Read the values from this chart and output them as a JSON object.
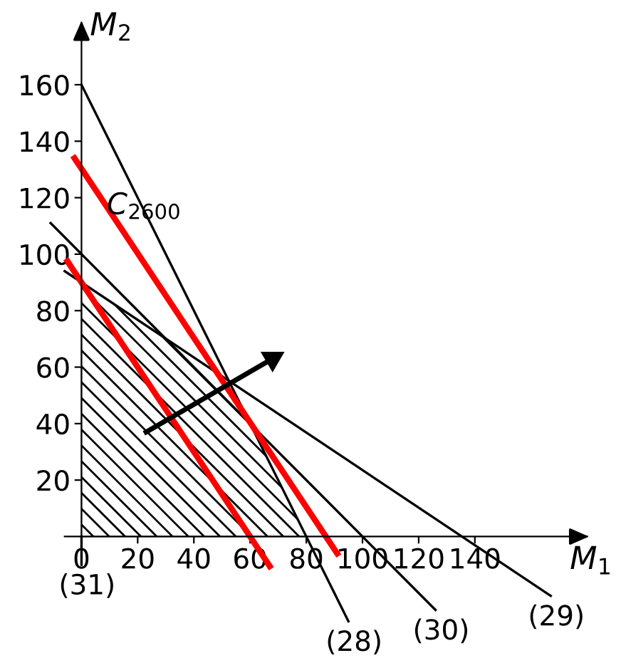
{
  "chart_data": {
    "type": "line",
    "xlabel": "M$_{1}$",
    "ylabel": "M$_{2}$",
    "xlim": [
      -29,
      192
    ],
    "ylim": [
      -43,
      190
    ],
    "xticks": [
      0,
      20,
      40,
      60,
      80,
      100,
      120,
      140
    ],
    "yticks": [
      20,
      40,
      60,
      80,
      100,
      120,
      140,
      160
    ],
    "legend": false,
    "marker": "none",
    "line_style": "solid",
    "series": [
      {
        "type": "area",
        "color": "#000000",
        "x": [
          0,
          0,
          30,
          60,
          80
        ],
        "values": [
          0,
          90,
          70,
          40,
          0
        ]
      },
      {
        "name": "(28)",
        "color": "#000000",
        "x": [
          0,
          95
        ],
        "values": [
          160,
          -30
        ]
      },
      {
        "name": "(30)",
        "color": "#000000",
        "x": [
          -11,
          126
        ],
        "values": [
          111,
          -26
        ]
      },
      {
        "name": "(29)",
        "color": "#000000",
        "x": [
          -6,
          167
        ],
        "values": [
          94,
          -21
        ]
      },
      {
        "name": "(31)",
        "color": "#000000",
        "x": [
          0,
          0
        ],
        "values": [
          0,
          -10
        ]
      },
      {
        "color": "#ff0000",
        "x": [
          -2.5,
          91
        ],
        "values": [
          134,
          -6
        ]
      },
      {
        "color": "#ff0000",
        "x": [
          -5,
          67
        ],
        "values": [
          97.5,
          -10.5
        ]
      },
      {
        "color": "#000000",
        "marker": "triangle",
        "x": [
          23,
          68
        ],
        "values": [
          37,
          63
        ]
      }
    ],
    "annotations": [
      {
        "text": "C$_{2600}$",
        "x": 9,
        "y": 117
      }
    ]
  }
}
